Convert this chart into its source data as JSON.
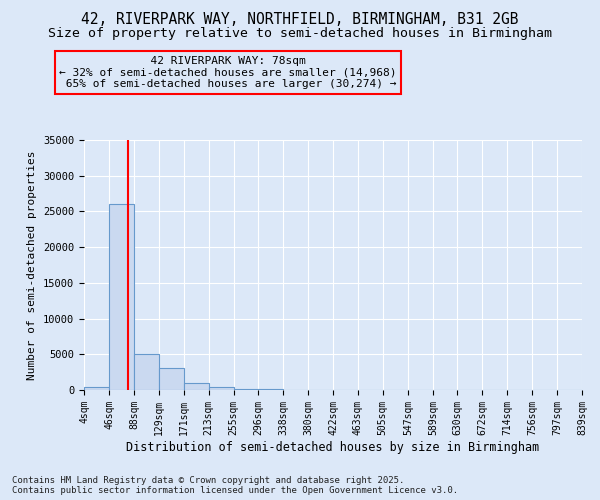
{
  "title_line1": "42, RIVERPARK WAY, NORTHFIELD, BIRMINGHAM, B31 2GB",
  "title_line2": "Size of property relative to semi-detached houses in Birmingham",
  "xlabel": "Distribution of semi-detached houses by size in Birmingham",
  "ylabel": "Number of semi-detached properties",
  "bin_edges": [
    4,
    46,
    88,
    129,
    171,
    213,
    255,
    296,
    338,
    380,
    422,
    463,
    505,
    547,
    589,
    630,
    672,
    714,
    756,
    797,
    839
  ],
  "bar_heights": [
    400,
    26000,
    5100,
    3100,
    1050,
    380,
    150,
    80,
    50,
    35,
    25,
    18,
    14,
    10,
    8,
    6,
    5,
    4,
    3,
    2
  ],
  "bar_color": "#cad9f0",
  "bar_edge_color": "#6699cc",
  "property_size": 78,
  "property_label": "42 RIVERPARK WAY: 78sqm",
  "smaller_pct": "32%",
  "smaller_count": "14,968",
  "larger_pct": "65%",
  "larger_count": "30,274",
  "vline_color": "red",
  "ylim": [
    0,
    35000
  ],
  "annotation_box_color": "red",
  "footer_line1": "Contains HM Land Registry data © Crown copyright and database right 2025.",
  "footer_line2": "Contains public sector information licensed under the Open Government Licence v3.0.",
  "background_color": "#dce8f8",
  "plot_bg_color": "#dce8f8",
  "title_fontsize": 10.5,
  "subtitle_fontsize": 9.5,
  "tick_label_fontsize": 7,
  "ylabel_fontsize": 8,
  "xlabel_fontsize": 8.5,
  "annotation_fontsize": 8,
  "footer_fontsize": 6.5,
  "ytick_labels": [
    "0",
    "5000",
    "10000",
    "15000",
    "20000",
    "25000",
    "30000",
    "35000"
  ],
  "ytick_values": [
    0,
    5000,
    10000,
    15000,
    20000,
    25000,
    30000,
    35000
  ]
}
